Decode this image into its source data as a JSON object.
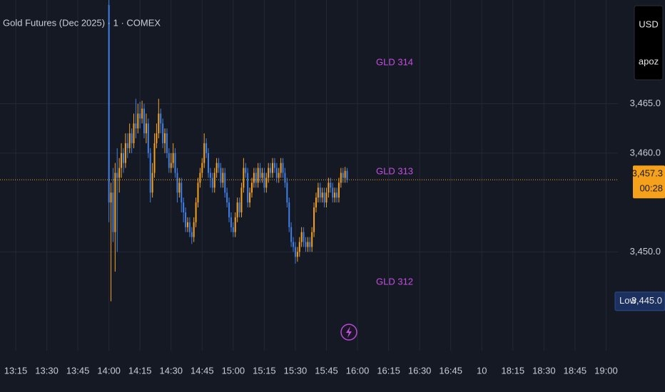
{
  "chart_data": {
    "type": "candlestick",
    "title": "Gold Futures (Dec 2025) · 1 · COMEX",
    "currency": "USD",
    "user": "apoz",
    "annotations": [
      "GLD 314",
      "GLD 313",
      "GLD 312"
    ],
    "up_color": "#f5a11c",
    "down_color": "#3f7fe6",
    "grid": true,
    "ylim": [
      3440,
      3475.5
    ],
    "yticks": [
      {
        "value": 3450,
        "label": "3,450.0"
      },
      {
        "value": 3460,
        "label": "3,460.0"
      },
      {
        "value": 3465,
        "label": "3,465.0"
      }
    ],
    "xticks": [
      "13:15",
      "13:30",
      "13:45",
      "14:00",
      "14:15",
      "14:30",
      "14:45",
      "15:00",
      "15:15",
      "15:30",
      "15:45",
      "16:00",
      "16:15",
      "16:30",
      "16:45",
      "10",
      "18:15",
      "18:30",
      "18:45",
      "19:00"
    ],
    "last_price": {
      "value": 3457.3,
      "label": "3,457.3"
    },
    "countdown": "00:28",
    "session_low": {
      "name": "Low",
      "value": 3445,
      "label": "3,445.0"
    },
    "x": [
      "14:00",
      "14:01",
      "14:02",
      "14:03",
      "14:04",
      "14:05",
      "14:06",
      "14:07",
      "14:08",
      "14:09",
      "14:10",
      "14:11",
      "14:12",
      "14:13",
      "14:14",
      "14:15",
      "14:16",
      "14:17",
      "14:18",
      "14:19",
      "14:20",
      "14:21",
      "14:22",
      "14:23",
      "14:24",
      "14:25",
      "14:26",
      "14:27",
      "14:28",
      "14:29",
      "14:30",
      "14:31",
      "14:32",
      "14:33",
      "14:34",
      "14:35",
      "14:36",
      "14:37",
      "14:38",
      "14:39",
      "14:40",
      "14:41",
      "14:42",
      "14:43",
      "14:44",
      "14:45",
      "14:46",
      "14:47",
      "14:48",
      "14:49",
      "14:50",
      "14:51",
      "14:52",
      "14:53",
      "14:54",
      "14:55",
      "14:56",
      "14:57",
      "14:58",
      "14:59",
      "15:00",
      "15:01",
      "15:02",
      "15:03",
      "15:04",
      "15:05",
      "15:06",
      "15:07",
      "15:08",
      "15:09",
      "15:10",
      "15:11",
      "15:12",
      "15:13",
      "15:14",
      "15:15",
      "15:16",
      "15:17",
      "15:18",
      "15:19",
      "15:20",
      "15:21",
      "15:22",
      "15:23",
      "15:24",
      "15:25",
      "15:26",
      "15:27",
      "15:28",
      "15:29",
      "15:30",
      "15:31",
      "15:32",
      "15:33",
      "15:34",
      "15:35",
      "15:36",
      "15:37",
      "15:38",
      "15:39",
      "15:40",
      "15:41",
      "15:42",
      "15:43",
      "15:44",
      "15:45",
      "15:46",
      "15:47",
      "15:48",
      "15:49",
      "15:50",
      "15:51",
      "15:52",
      "15:53",
      "15:54",
      "15:55"
    ],
    "open": [
      3475,
      3455,
      3456,
      3452,
      3458,
      3457.5,
      3458.5,
      3460,
      3459,
      3461,
      3460.5,
      3462,
      3461,
      3463,
      3462.5,
      3464,
      3463.5,
      3464.5,
      3462,
      3463,
      3460,
      3456,
      3458,
      3461,
      3462,
      3464,
      3463,
      3461,
      3462,
      3460,
      3458.5,
      3459,
      3460,
      3458,
      3456,
      3457,
      3455,
      3454,
      3452.5,
      3453,
      3452,
      3451.5,
      3453,
      3455,
      3457,
      3458,
      3459,
      3461,
      3460,
      3458,
      3457.5,
      3456.5,
      3458,
      3459,
      3458.5,
      3457,
      3458,
      3456,
      3455,
      3453.5,
      3452.5,
      3452,
      3453.5,
      3455,
      3454,
      3456.5,
      3458.5,
      3458,
      3455,
      3456,
      3457,
      3458,
      3457,
      3458.5,
      3457.5,
      3458,
      3456.5,
      3457.5,
      3458.5,
      3458,
      3459,
      3458.5,
      3457.5,
      3458,
      3459,
      3458,
      3457,
      3455,
      3452.5,
      3451,
      3450.5,
      3449.5,
      3450,
      3451,
      3452,
      3451,
      3450.5,
      3451,
      3450.5,
      3452,
      3454.5,
      3455.5,
      3456.5,
      3455.5,
      3456,
      3455,
      3456,
      3457,
      3456.5,
      3455.5,
      3456,
      3455.5,
      3457,
      3458,
      3457.5,
      3458.2
    ],
    "high": [
      3475.5,
      3457,
      3458.5,
      3459,
      3460.5,
      3459.5,
      3461,
      3460.5,
      3462,
      3462,
      3463,
      3462.5,
      3464,
      3465.5,
      3465,
      3465.2,
      3465.3,
      3465,
      3464,
      3463.5,
      3460.5,
      3459,
      3462,
      3463,
      3465.5,
      3464.5,
      3463.5,
      3462.5,
      3462.5,
      3460.5,
      3460,
      3461,
      3460.5,
      3458.5,
      3457.5,
      3457.5,
      3455.5,
      3454.5,
      3453.5,
      3453.5,
      3452.5,
      3453.5,
      3455.5,
      3457.5,
      3458.5,
      3459.5,
      3462,
      3461.5,
      3460.5,
      3458.5,
      3458,
      3458.5,
      3459.5,
      3459.5,
      3459,
      3458.5,
      3458.5,
      3456.5,
      3455.5,
      3454,
      3453,
      3454,
      3455.5,
      3455.5,
      3457,
      3459.5,
      3459,
      3458.5,
      3456.5,
      3457.5,
      3458.5,
      3458.5,
      3459,
      3459,
      3458.5,
      3458.5,
      3458,
      3459,
      3459,
      3459.5,
      3459.5,
      3459,
      3458.5,
      3459.5,
      3459.5,
      3458.5,
      3457.5,
      3455.5,
      3453,
      3451.5,
      3451,
      3450.5,
      3451.5,
      3452.5,
      3452.5,
      3451.5,
      3451.5,
      3451.5,
      3452.5,
      3455,
      3456,
      3457,
      3457,
      3456.5,
      3456.5,
      3456.5,
      3457.5,
      3457.5,
      3457,
      3456.5,
      3456.5,
      3457.5,
      3458.5,
      3458.5,
      3458.6,
      3458.5
    ],
    "low": [
      3453,
      3445,
      3451,
      3448,
      3450,
      3456,
      3457.5,
      3458,
      3458.5,
      3459.5,
      3460,
      3460,
      3460.5,
      3461.5,
      3462,
      3462.5,
      3463,
      3461.5,
      3461,
      3459.5,
      3455,
      3455.5,
      3457.5,
      3460.5,
      3461.5,
      3462,
      3460.5,
      3460,
      3459.5,
      3458,
      3458,
      3458.5,
      3457.5,
      3455,
      3455.5,
      3454,
      3453,
      3452,
      3452,
      3451.5,
      3450.8,
      3451,
      3452.5,
      3454.5,
      3456.5,
      3457.5,
      3458.5,
      3459.5,
      3457.5,
      3456.5,
      3456,
      3456,
      3457.5,
      3458,
      3456.5,
      3456.5,
      3455.5,
      3454.5,
      3453,
      3452,
      3451.5,
      3451.5,
      3453,
      3453.5,
      3453.5,
      3456,
      3457.5,
      3454.5,
      3454.5,
      3455.5,
      3456.5,
      3456.5,
      3456.5,
      3457,
      3457,
      3456,
      3456,
      3457,
      3457.5,
      3457.5,
      3458,
      3457,
      3457,
      3457.5,
      3457.5,
      3456.5,
      3454.5,
      3452,
      3450.5,
      3450,
      3448.8,
      3449,
      3449.5,
      3450.5,
      3450.5,
      3450,
      3450,
      3450,
      3450,
      3451.5,
      3454,
      3455,
      3455,
      3455,
      3454.5,
      3454.5,
      3455.5,
      3456,
      3455,
      3455,
      3455,
      3455,
      3456.5,
      3457,
      3457,
      3457
    ],
    "close": [
      3455,
      3456,
      3452,
      3458,
      3457.5,
      3458.5,
      3460,
      3459,
      3461,
      3460.5,
      3462,
      3461,
      3463,
      3462.5,
      3464,
      3463.5,
      3464.5,
      3462,
      3463,
      3460,
      3456,
      3458,
      3461,
      3462,
      3464,
      3463,
      3461,
      3462,
      3460,
      3458.5,
      3459,
      3460,
      3458,
      3456,
      3457,
      3455,
      3454,
      3452.5,
      3453,
      3452,
      3451.5,
      3453,
      3455,
      3457,
      3458,
      3459,
      3461,
      3460,
      3458,
      3457.5,
      3456.5,
      3458,
      3459,
      3458.5,
      3457,
      3458,
      3456,
      3455,
      3453.5,
      3452.5,
      3452,
      3453.5,
      3455,
      3454,
      3456.5,
      3458.5,
      3458,
      3455,
      3456,
      3457,
      3458,
      3457,
      3458.5,
      3457.5,
      3458,
      3456.5,
      3457.5,
      3458.5,
      3458,
      3459,
      3458.5,
      3457.5,
      3458,
      3459,
      3458,
      3457,
      3455,
      3452.5,
      3451,
      3450.5,
      3449.5,
      3450,
      3451,
      3452,
      3451,
      3450.5,
      3451,
      3450.5,
      3452,
      3454.5,
      3455.5,
      3456.5,
      3455.5,
      3456,
      3455,
      3456,
      3457,
      3456.5,
      3455.5,
      3456,
      3455.5,
      3457,
      3458,
      3457.5,
      3458.2,
      3457.3
    ]
  }
}
